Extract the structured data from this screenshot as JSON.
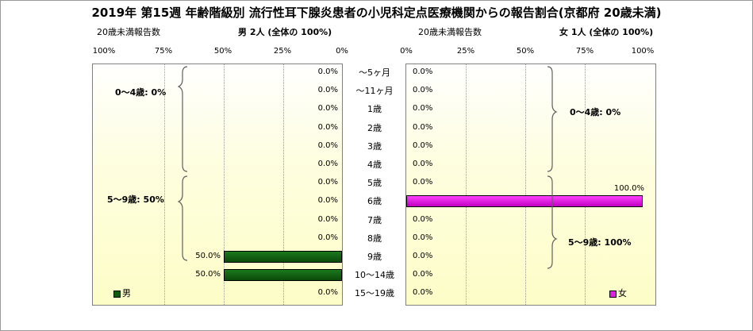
{
  "title": "2019年 第15週 年齢階級別 流行性耳下腺炎患者の小児科定点医療機関からの報告割合(京都府 20歳未満)",
  "left_panel": {
    "subheader_left": "20歳未満報告数",
    "subheader_right": "男 2人 (全体の 100%)",
    "ticks": [
      "100%",
      "75%",
      "50%",
      "25%",
      "0%"
    ],
    "group1_label": "0〜4歳: 0%",
    "group2_label": "5〜9歳: 50%",
    "legend_label": "男"
  },
  "right_panel": {
    "subheader_left": "20歳未満報告数",
    "subheader_right": "女 1人 (全体の 100%)",
    "ticks": [
      "0%",
      "25%",
      "50%",
      "75%",
      "100%"
    ],
    "group1_label": "0〜4歳: 0%",
    "group2_label": "5〜9歳: 100%",
    "legend_label": "女"
  },
  "colors": {
    "male": "#0e5a0e",
    "female": "#e020e0"
  },
  "chart_data": {
    "type": "bar",
    "orientation": "horizontal",
    "layout": "population-pyramid",
    "categories": [
      "〜5ヶ月",
      "〜11ヶ月",
      "1歳",
      "2歳",
      "3歳",
      "4歳",
      "5歳",
      "6歳",
      "7歳",
      "8歳",
      "9歳",
      "10〜14歳",
      "15〜19歳"
    ],
    "xlim": [
      0,
      100
    ],
    "series": [
      {
        "name": "男",
        "values": [
          0,
          0,
          0,
          0,
          0,
          0,
          0,
          0,
          0,
          0,
          50,
          50,
          0
        ],
        "labels": [
          "0.0%",
          "0.0%",
          "0.0%",
          "0.0%",
          "0.0%",
          "0.0%",
          "0.0%",
          "0.0%",
          "0.0%",
          "0.0%",
          "50.0%",
          "50.0%",
          "0.0%"
        ]
      },
      {
        "name": "女",
        "values": [
          0,
          0,
          0,
          0,
          0,
          0,
          0,
          100,
          0,
          0,
          0,
          0,
          0
        ],
        "labels": [
          "0.0%",
          "0.0%",
          "0.0%",
          "0.0%",
          "0.0%",
          "0.0%",
          "0.0%",
          "100.0%",
          "0.0%",
          "0.0%",
          "0.0%",
          "0.0%",
          "0.0%"
        ]
      }
    ]
  }
}
